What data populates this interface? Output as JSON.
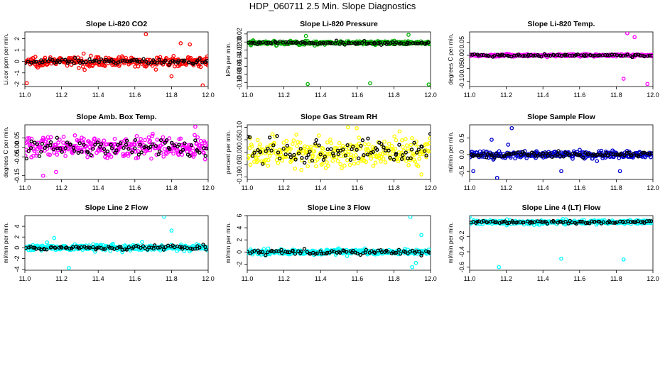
{
  "figure_title": "HDP_060711  2.5 Min. Slope Diagnostics",
  "colors": {
    "background": "#ffffff",
    "reference_points": "#000000"
  },
  "chart_data": [
    {
      "type": "scatter",
      "title": "Slope Li-820 CO2",
      "ylabel": "Li.cor ppm per min.",
      "xlabel": "",
      "color": "#ff0000",
      "xlim": [
        11.0,
        12.0
      ],
      "ylim": [
        -2.2,
        2.6
      ],
      "xticks": [
        "11.0",
        "11.2",
        "11.4",
        "11.6",
        "11.8",
        "12.0"
      ],
      "yticks": [
        "-2",
        "-1",
        "0",
        "1",
        "2"
      ],
      "ytick_values": [
        -2,
        -1,
        0,
        1,
        2
      ],
      "base": 0.0,
      "spread": 0.35,
      "outliers": [
        [
          11.01,
          -1.9
        ],
        [
          11.66,
          2.4
        ],
        [
          11.97,
          -2.1
        ],
        [
          11.85,
          1.6
        ],
        [
          11.8,
          -1.3
        ],
        [
          11.9,
          1.5
        ]
      ],
      "ref_spread": 0.15
    },
    {
      "type": "scatter",
      "title": "Slope Li-820 Pressure",
      "ylabel": "kPa per min.",
      "xlabel": "",
      "color": "#00b000",
      "xlim": [
        11.0,
        12.0
      ],
      "ylim": [
        -0.11,
        0.025
      ],
      "xticks": [
        "11.0",
        "11.2",
        "11.4",
        "11.6",
        "11.8",
        "12.0"
      ],
      "yticks": [
        "-0.10",
        "-0.08",
        "-0.06",
        "-0.04",
        "-0.02",
        "0.00",
        "0.02"
      ],
      "ytick_values": [
        -0.1,
        -0.08,
        -0.06,
        -0.04,
        -0.02,
        0.0,
        0.02
      ],
      "base": -0.002,
      "spread": 0.004,
      "outliers": [
        [
          11.33,
          -0.104
        ],
        [
          11.67,
          -0.102
        ],
        [
          11.99,
          -0.105
        ],
        [
          11.88,
          0.018
        ],
        [
          11.32,
          0.015
        ],
        [
          11.02,
          -0.008
        ]
      ],
      "ref_spread": 0.003
    },
    {
      "type": "scatter",
      "title": "Slope Li-820 Temp.",
      "ylabel": "degrees C per min.",
      "xlabel": "",
      "color": "#ff00ff",
      "xlim": [
        11.0,
        12.0
      ],
      "ylim": [
        -0.12,
        0.09
      ],
      "xticks": [
        "11.0",
        "11.2",
        "11.4",
        "11.6",
        "11.8",
        "12.0"
      ],
      "yticks": [
        "-0.10",
        "-0.05",
        "0.00",
        "0.05"
      ],
      "ytick_values": [
        -0.1,
        -0.05,
        0.0,
        0.05
      ],
      "base": 0.0,
      "spread": 0.004,
      "outliers": [
        [
          11.86,
          0.085
        ],
        [
          11.97,
          -0.11
        ],
        [
          11.84,
          -0.09
        ],
        [
          11.9,
          0.07
        ]
      ],
      "ref_spread": 0.003
    },
    {
      "type": "scatter",
      "title": "Slope Amb. Box Temp.",
      "ylabel": "degrees C per min.",
      "xlabel": "",
      "color": "#ff00ff",
      "xlim": [
        11.0,
        12.0
      ],
      "ylim": [
        -0.17,
        0.12
      ],
      "xticks": [
        "11.0",
        "11.2",
        "11.4",
        "11.6",
        "11.8",
        "12.0"
      ],
      "yticks": [
        "-0.15",
        "-0.05",
        "0.00",
        "0.05"
      ],
      "ytick_values": [
        -0.15,
        -0.05,
        0.0,
        0.05
      ],
      "base": 0.0,
      "spread": 0.045,
      "outliers": [
        [
          11.1,
          -0.15
        ],
        [
          11.93,
          0.11
        ],
        [
          11.17,
          -0.13
        ]
      ],
      "ref_spread": 0.035
    },
    {
      "type": "scatter",
      "title": "Slope Gas Stream RH",
      "ylabel": "percent per min.",
      "xlabel": "",
      "color": "#ffff00",
      "xlim": [
        11.0,
        12.0
      ],
      "ylim": [
        -0.11,
        0.11
      ],
      "xticks": [
        "11.0",
        "11.2",
        "11.4",
        "11.6",
        "11.8",
        "12.0"
      ],
      "yticks": [
        "-0.10",
        "-0.05",
        "0.00",
        "0.05",
        "0.10"
      ],
      "ytick_values": [
        -0.1,
        -0.05,
        0.0,
        0.05,
        0.1
      ],
      "base": 0.0,
      "spread": 0.05,
      "outliers": [
        [
          11.95,
          -0.09
        ],
        [
          11.55,
          0.1
        ]
      ],
      "ref_spread": 0.04
    },
    {
      "type": "scatter",
      "title": "Slope Sample Flow",
      "ylabel": "ml/min per min.",
      "xlabel": "",
      "color": "#0000cc",
      "xlim": [
        11.0,
        12.0
      ],
      "ylim": [
        -0.75,
        0.9
      ],
      "xticks": [
        "11.0",
        "11.2",
        "11.4",
        "11.6",
        "11.8",
        "12.0"
      ],
      "yticks": [
        "-0.5",
        "0.0",
        "0.5"
      ],
      "ytick_values": [
        -0.5,
        0.0,
        0.5
      ],
      "base": 0.0,
      "spread": 0.09,
      "outliers": [
        [
          11.23,
          0.8
        ],
        [
          11.12,
          0.45
        ],
        [
          11.02,
          -0.5
        ],
        [
          11.15,
          -0.7
        ],
        [
          11.5,
          -0.5
        ],
        [
          11.82,
          -0.5
        ],
        [
          11.21,
          0.3
        ]
      ],
      "ref_spread": 0.06
    },
    {
      "type": "scatter",
      "title": "Slope Line 2 Flow",
      "ylabel": "ml/min per min.",
      "xlabel": "",
      "color": "#00ffff",
      "xlim": [
        11.0,
        12.0
      ],
      "ylim": [
        -4.2,
        6.0
      ],
      "xticks": [
        "11.0",
        "11.2",
        "11.4",
        "11.6",
        "11.8",
        "12.0"
      ],
      "yticks": [
        "-4",
        "-2",
        "0",
        "2",
        "4"
      ],
      "ytick_values": [
        -4,
        -2,
        0,
        2,
        4
      ],
      "base": 0.0,
      "spread": 0.45,
      "outliers": [
        [
          11.24,
          -3.8
        ],
        [
          11.76,
          5.8
        ],
        [
          11.8,
          3.2
        ],
        [
          11.16,
          1.8
        ]
      ],
      "ref_spread": 0.3
    },
    {
      "type": "scatter",
      "title": "Slope Line 3 Flow",
      "ylabel": "ml/min per min.",
      "xlabel": "",
      "color": "#00ffff",
      "xlim": [
        11.0,
        12.0
      ],
      "ylim": [
        -3.0,
        6.0
      ],
      "xticks": [
        "11.0",
        "11.2",
        "11.4",
        "11.6",
        "11.8",
        "12.0"
      ],
      "yticks": [
        "-2",
        "0",
        "2",
        "4",
        "6"
      ],
      "ytick_values": [
        -2,
        0,
        2,
        4,
        6
      ],
      "base": 0.0,
      "spread": 0.35,
      "outliers": [
        [
          11.89,
          5.8
        ],
        [
          11.9,
          -2.5
        ],
        [
          11.95,
          2.8
        ],
        [
          11.92,
          -1.8
        ]
      ],
      "ref_spread": 0.25
    },
    {
      "type": "scatter",
      "title": "Slope Line 4 (LT) Flow",
      "ylabel": "ml/min per min.",
      "xlabel": "",
      "color": "#00ffff",
      "xlim": [
        11.0,
        12.0
      ],
      "ylim": [
        -0.64,
        0.07
      ],
      "xticks": [
        "11.0",
        "11.2",
        "11.4",
        "11.6",
        "11.8",
        "12.0"
      ],
      "yticks": [
        "-0.6",
        "-0.4",
        "-0.2"
      ],
      "ytick_values": [
        -0.6,
        -0.4,
        -0.2
      ],
      "base": -0.015,
      "spread": 0.022,
      "outliers": [
        [
          11.16,
          -0.6
        ],
        [
          11.5,
          -0.49
        ],
        [
          11.84,
          -0.5
        ],
        [
          11.0,
          0.05
        ]
      ],
      "ref_spread": 0.015
    }
  ]
}
